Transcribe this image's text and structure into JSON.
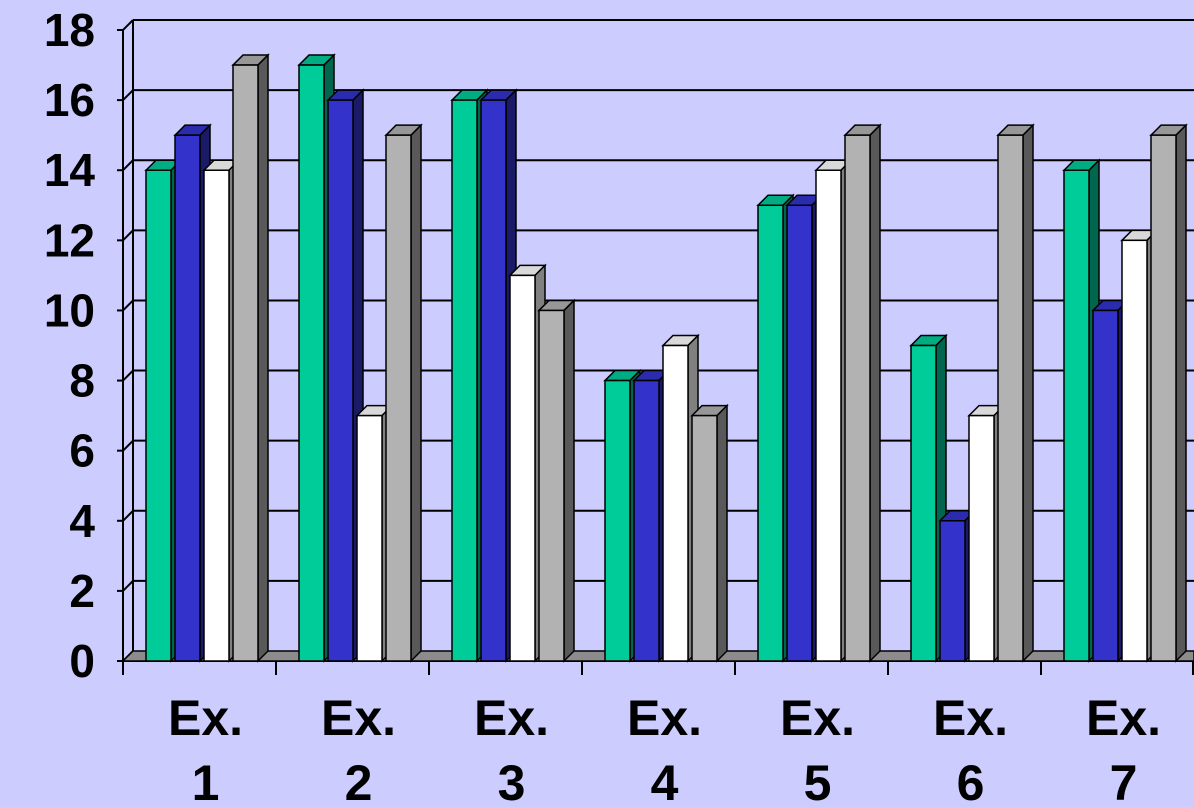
{
  "chart_data": {
    "type": "bar",
    "title": "",
    "xlabel": "",
    "ylabel": "",
    "ylim": [
      0,
      18
    ],
    "yticks": [
      0,
      2,
      4,
      6,
      8,
      10,
      12,
      14,
      16,
      18
    ],
    "grid": true,
    "legend": "none",
    "style": "3d-clustered-column",
    "categories": [
      [
        "Ex.",
        "1"
      ],
      [
        "Ex.",
        "2"
      ],
      [
        "Ex.",
        "3"
      ],
      [
        "Ex.",
        "4"
      ],
      [
        "Ex.",
        "5"
      ],
      [
        "Ex.",
        "6"
      ],
      [
        "Ex.",
        "7"
      ]
    ],
    "series": [
      {
        "color": "#00cc99",
        "values": [
          14,
          17,
          16,
          8,
          13,
          9,
          14
        ]
      },
      {
        "color": "#3333cc",
        "values": [
          15,
          16,
          16,
          8,
          13,
          4,
          10
        ]
      },
      {
        "color": "#ffffff",
        "values": [
          14,
          7,
          11,
          9,
          14,
          7,
          12
        ]
      },
      {
        "color": "#b2b2b2",
        "values": [
          17,
          15,
          10,
          7,
          15,
          15,
          15
        ]
      }
    ]
  }
}
